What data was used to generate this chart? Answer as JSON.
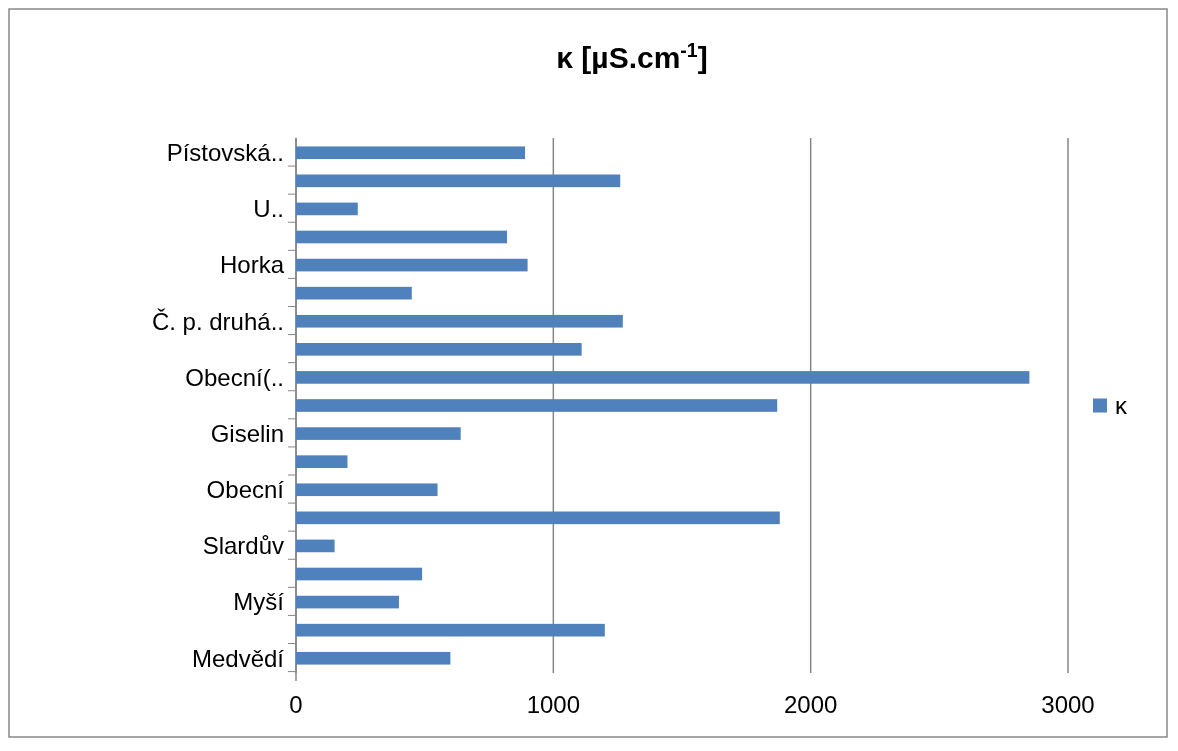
{
  "chart_data": {
    "type": "bar",
    "orientation": "horizontal",
    "title": "κ [µS.cm$^{-1}$]",
    "categories": [
      "Pístovská..",
      null,
      "U..",
      null,
      "Horka",
      null,
      "Č. p. druhá..",
      null,
      "Obecní(..",
      null,
      "Giselin",
      null,
      "Obecní",
      null,
      "Slardův",
      null,
      "Myší",
      null,
      "Medvědí"
    ],
    "series": [
      {
        "name": "κ",
        "color": "#4f81bd",
        "values": [
          890,
          1260,
          240,
          820,
          900,
          450,
          1270,
          1110,
          2850,
          1870,
          640,
          200,
          550,
          1880,
          150,
          490,
          400,
          1200,
          600
        ]
      }
    ],
    "xlim": [
      0,
      3000
    ],
    "xticks": [
      0,
      1000,
      2000,
      3000
    ],
    "grid": "x",
    "legend": "right"
  }
}
